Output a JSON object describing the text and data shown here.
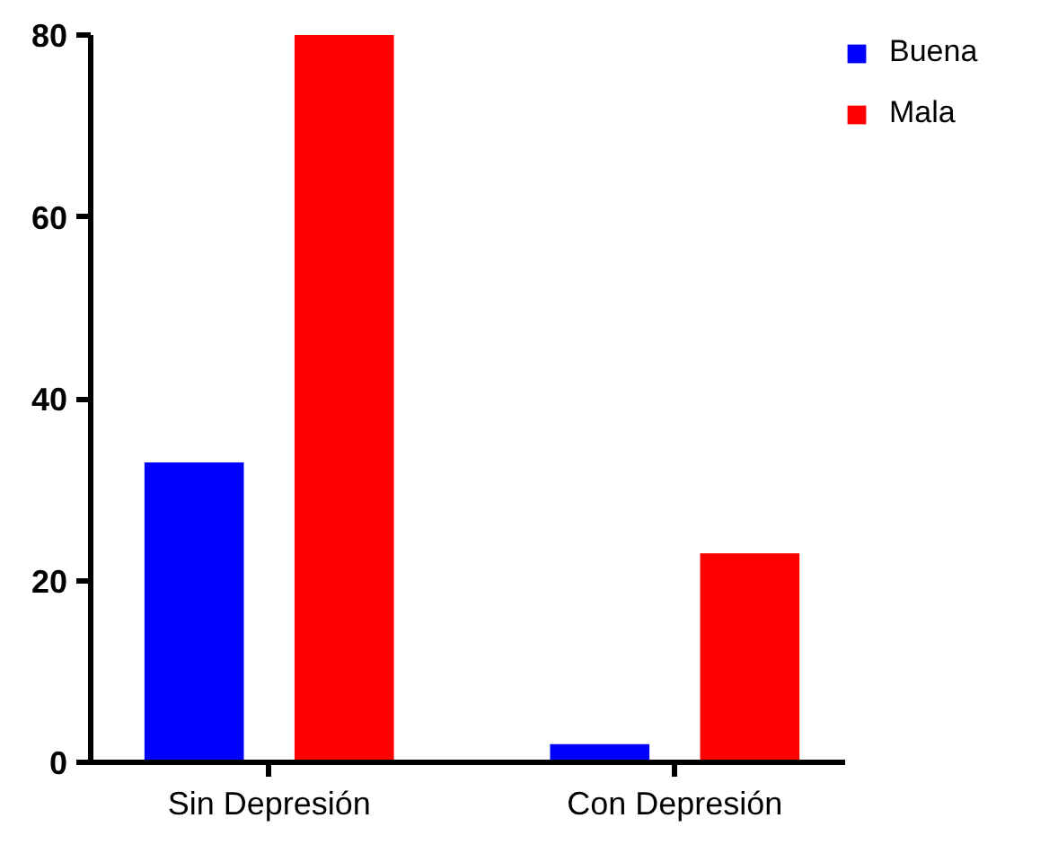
{
  "chart_data": {
    "type": "bar",
    "categories": [
      "Sin Depresión",
      "Con Depresión"
    ],
    "series": [
      {
        "name": "Buena",
        "color": "#0000ff",
        "values": [
          33,
          2
        ]
      },
      {
        "name": "Mala",
        "color": "#ff0000",
        "values": [
          80,
          23
        ]
      }
    ],
    "ylim": [
      0,
      80
    ],
    "yticks": [
      0,
      20,
      40,
      60,
      80
    ],
    "grid": false,
    "legend": "top right"
  }
}
